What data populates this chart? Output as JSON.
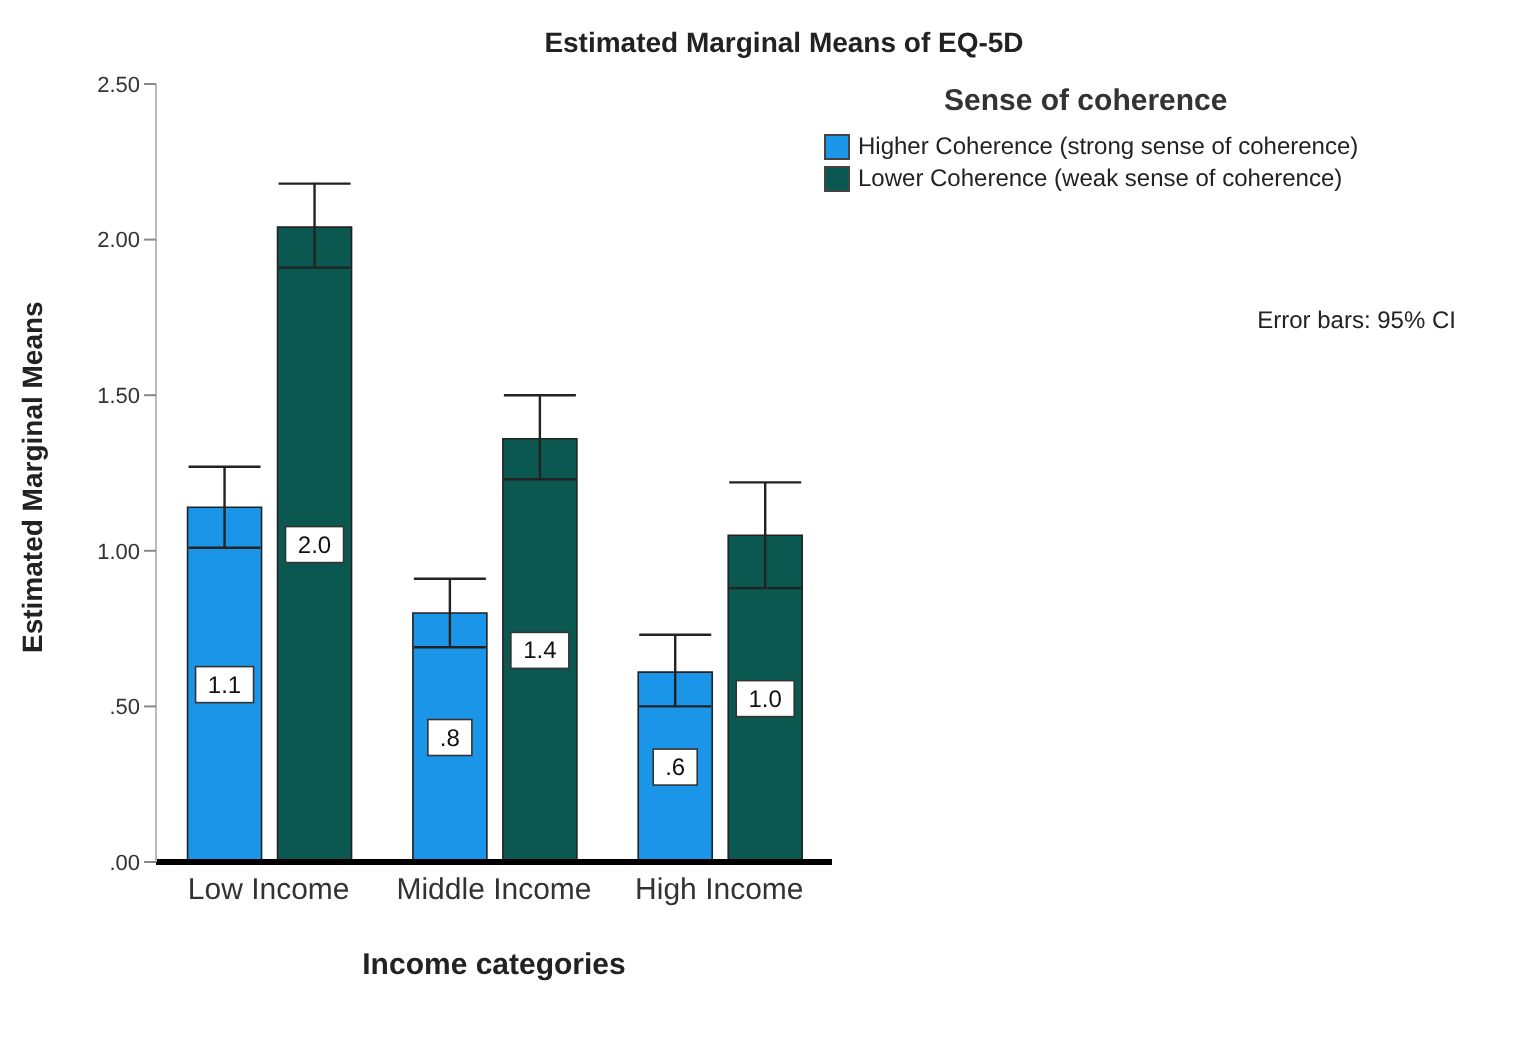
{
  "chart_data": {
    "type": "bar",
    "title": "Estimated Marginal Means of EQ-5D",
    "xlabel": "Income categories",
    "ylabel": "Estimated Marginal Means",
    "legend_title": "Sense of coherence",
    "categories": [
      "Low Income",
      "Middle Income",
      "High Income"
    ],
    "series": [
      {
        "name": "Higher Coherence (strong sense of coherence)",
        "color": "#1b95e8",
        "values": [
          1.14,
          0.8,
          0.61
        ],
        "errors": [
          [
            1.01,
            1.27
          ],
          [
            0.69,
            0.91
          ],
          [
            0.5,
            0.73
          ]
        ],
        "value_labels": [
          "1.1",
          ".8",
          ".6"
        ]
      },
      {
        "name": "Lower Coherence (weak sense of coherence)",
        "color": "#0a5850",
        "values": [
          2.04,
          1.36,
          1.05
        ],
        "errors": [
          [
            1.91,
            2.18
          ],
          [
            1.23,
            1.5
          ],
          [
            0.88,
            1.22
          ]
        ],
        "value_labels": [
          "2.0",
          "1.4",
          "1.0"
        ]
      }
    ],
    "ylim": [
      0,
      2.5
    ],
    "yticks": [
      {
        "value": 0,
        "label": ".00"
      },
      {
        "value": 0.5,
        "label": ".50"
      },
      {
        "value": 1,
        "label": "1.00"
      },
      {
        "value": 1.5,
        "label": "1.50"
      },
      {
        "value": 2,
        "label": "2.00"
      },
      {
        "value": 2.5,
        "label": "2.50"
      }
    ],
    "grid": false,
    "legend": "top right",
    "annotations": [
      "Error bars: 95% CI"
    ]
  }
}
